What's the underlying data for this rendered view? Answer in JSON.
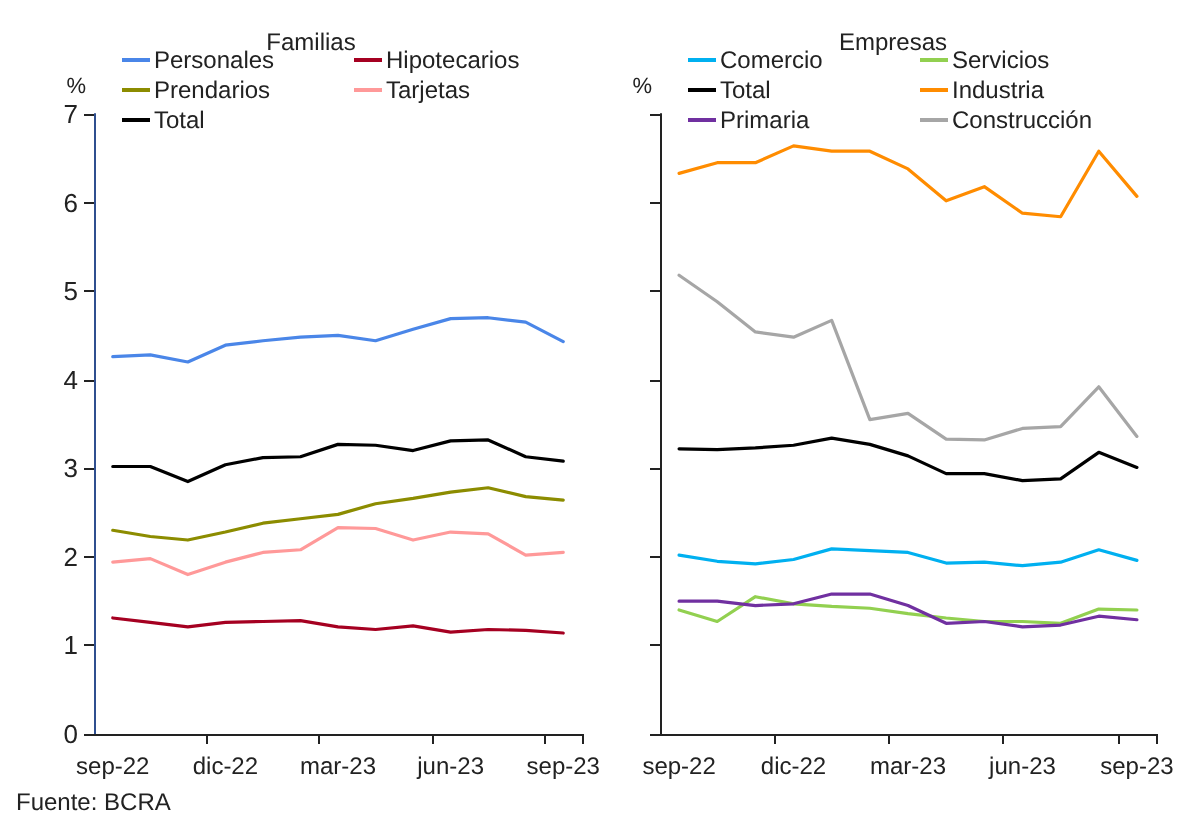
{
  "chart_data": [
    {
      "type": "line",
      "title": "Familias",
      "ylabel": "%",
      "categories": [
        "sep-22",
        null,
        null,
        "dic-22",
        null,
        null,
        "mar-23",
        null,
        null,
        "jun-23",
        null,
        null,
        "sep-23"
      ],
      "ylim": [
        0,
        7
      ],
      "yticks": [
        0,
        1,
        2,
        3,
        4,
        5,
        6,
        7
      ],
      "grid": false,
      "legend": "top",
      "marker": "none",
      "line_style": "solid",
      "annotations": [
        "Fuente: BCRA"
      ],
      "series": [
        {
          "name": "Personales",
          "color": "#4a86e8",
          "values": [
            4.26,
            4.28,
            4.2,
            4.39,
            4.44,
            4.48,
            4.5,
            4.44,
            4.57,
            4.69,
            4.7,
            4.65,
            4.43
          ]
        },
        {
          "name": "Hipotecarios",
          "color": "#a50021",
          "values": [
            1.31,
            1.26,
            1.21,
            1.26,
            1.27,
            1.28,
            1.21,
            1.18,
            1.22,
            1.15,
            1.18,
            1.17,
            1.14
          ]
        },
        {
          "name": "Prendarios",
          "color": "#8c8c00",
          "values": [
            2.3,
            2.23,
            2.19,
            2.28,
            2.38,
            2.43,
            2.48,
            2.6,
            2.66,
            2.73,
            2.78,
            2.68,
            2.64
          ]
        },
        {
          "name": "Tarjetas",
          "color": "#ff9999",
          "values": [
            1.94,
            1.98,
            1.8,
            1.94,
            2.05,
            2.08,
            2.33,
            2.32,
            2.19,
            2.28,
            2.26,
            2.02,
            2.05
          ]
        },
        {
          "name": "Total",
          "color": "#000000",
          "values": [
            3.02,
            3.02,
            2.85,
            3.04,
            3.12,
            3.13,
            3.27,
            3.26,
            3.2,
            3.31,
            3.32,
            3.13,
            3.08
          ]
        }
      ]
    },
    {
      "type": "line",
      "title": "Empresas",
      "ylabel": "%",
      "categories": [
        "sep-22",
        null,
        null,
        "dic-22",
        null,
        null,
        "mar-23",
        null,
        null,
        "jun-23",
        null,
        null,
        "sep-23"
      ],
      "ylim": [
        0,
        7
      ],
      "yticks": [
        0,
        1,
        2,
        3,
        4,
        5,
        6,
        7
      ],
      "tick_labels": "x",
      "grid": false,
      "legend": "top",
      "marker": "none",
      "line_style": "solid",
      "series": [
        {
          "name": "Comercio",
          "color": "#00b0f0",
          "values": [
            2.02,
            1.95,
            1.92,
            1.97,
            2.09,
            2.07,
            2.05,
            1.93,
            1.94,
            1.9,
            1.94,
            2.08,
            1.96
          ]
        },
        {
          "name": "Servicios",
          "color": "#92d050",
          "values": [
            1.4,
            1.27,
            1.55,
            1.47,
            1.44,
            1.42,
            1.36,
            1.31,
            1.27,
            1.27,
            1.25,
            1.41,
            1.4
          ]
        },
        {
          "name": "Total",
          "color": "#000000",
          "values": [
            3.22,
            3.21,
            3.23,
            3.26,
            3.34,
            3.27,
            3.14,
            2.94,
            2.94,
            2.86,
            2.88,
            3.18,
            3.01
          ]
        },
        {
          "name": "Industria",
          "color": "#ff8c00",
          "values": [
            6.33,
            6.45,
            6.45,
            6.64,
            6.58,
            6.58,
            6.38,
            6.02,
            6.18,
            5.88,
            5.84,
            6.58,
            6.07
          ]
        },
        {
          "name": "Primaria",
          "color": "#7030a0",
          "values": [
            1.5,
            1.5,
            1.45,
            1.47,
            1.58,
            1.58,
            1.45,
            1.25,
            1.27,
            1.21,
            1.23,
            1.33,
            1.29
          ]
        },
        {
          "name": "Construcción",
          "color": "#a6a6a6",
          "values": [
            5.18,
            4.88,
            4.54,
            4.48,
            4.67,
            3.55,
            3.62,
            3.33,
            3.32,
            3.45,
            3.47,
            3.92,
            3.36
          ]
        }
      ]
    }
  ]
}
